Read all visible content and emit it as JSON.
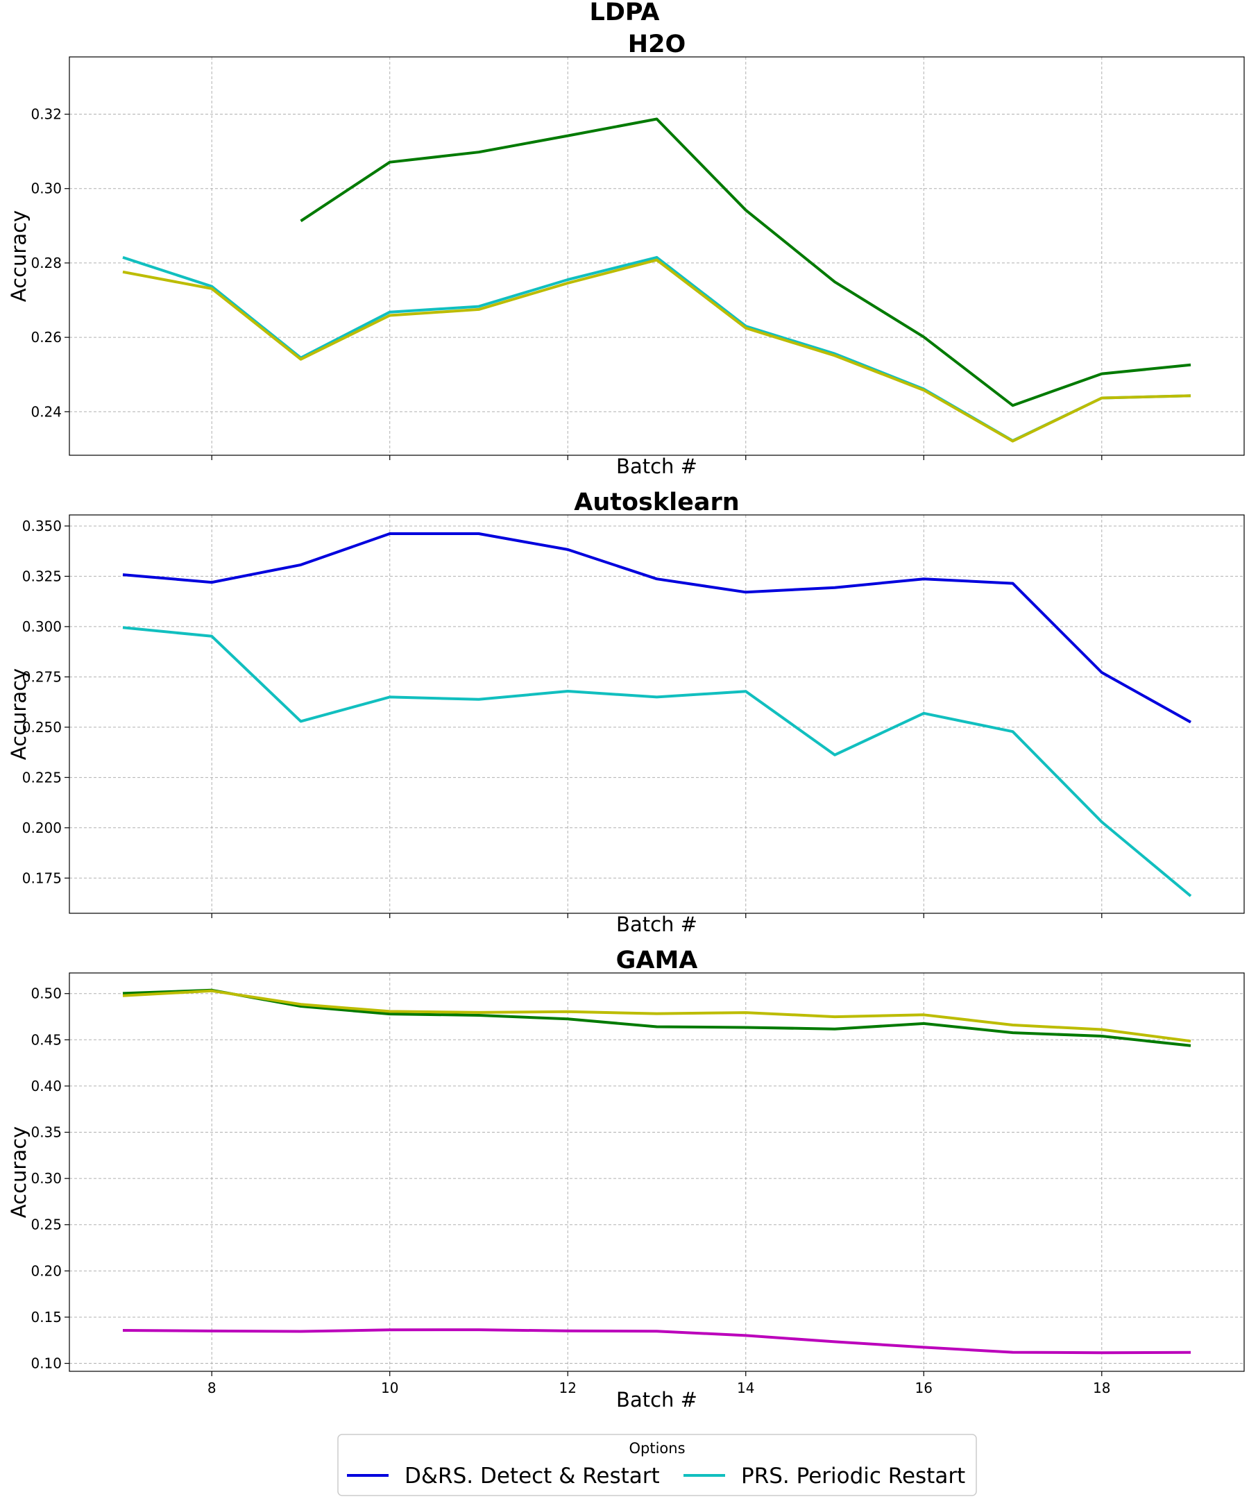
{
  "chart_data": {
    "type": "line",
    "title": "LDPA",
    "legend": {
      "title": "Options",
      "placement": "bottom-center",
      "entries": [
        {
          "label": "D&RS. Detect & Restart",
          "color": "#0000dd"
        },
        {
          "label": "PRS. Periodic Restart",
          "color": "#11bfbf"
        }
      ]
    },
    "x_ticks": [
      8,
      10,
      12,
      14,
      16,
      18
    ],
    "xlim": [
      6.4,
      19.6
    ],
    "grid": true,
    "panels": [
      {
        "title": "H2O",
        "xlabel": "Batch #",
        "ylabel": "Accuracy",
        "ylim": [
          0.2283,
          0.3354
        ],
        "y_ticks": [
          0.24,
          0.26,
          0.28,
          0.3,
          0.32
        ],
        "y_tick_labels": [
          "0.24",
          "0.26",
          "0.28",
          "0.30",
          "0.32"
        ],
        "show_x_tick_labels": false,
        "series": [
          {
            "color": "#007a00",
            "x": [
              9,
              10,
              11,
              12,
              13,
              14,
              15,
              16,
              17,
              18,
              19
            ],
            "values": [
              0.2913,
              0.3071,
              0.3098,
              0.3142,
              0.3187,
              0.2942,
              0.2749,
              0.2601,
              0.2417,
              0.2502,
              0.2526
            ]
          },
          {
            "color": "#11bfbf",
            "x": [
              7,
              8,
              9,
              10,
              11,
              12,
              13,
              14,
              15,
              16,
              17,
              18,
              19
            ],
            "values": [
              0.2815,
              0.2737,
              0.2545,
              0.2668,
              0.2683,
              0.2755,
              0.2815,
              0.263,
              0.2556,
              0.2461,
              0.2322,
              0.2437,
              0.2443
            ]
          },
          {
            "color": "#bcbc00",
            "x": [
              7,
              8,
              9,
              10,
              11,
              12,
              13,
              14,
              15,
              16,
              17,
              18,
              19
            ],
            "values": [
              0.2776,
              0.2731,
              0.2541,
              0.2659,
              0.2675,
              0.2746,
              0.2808,
              0.2625,
              0.2551,
              0.2458,
              0.2321,
              0.2437,
              0.2443
            ]
          }
        ]
      },
      {
        "title": "Autosklearn",
        "xlabel": "Batch #",
        "ylabel": "Accuracy",
        "ylim": [
          0.1575,
          0.3555
        ],
        "y_ticks": [
          0.175,
          0.2,
          0.225,
          0.25,
          0.275,
          0.3,
          0.325,
          0.35
        ],
        "y_tick_labels": [
          "0.175",
          "0.200",
          "0.225",
          "0.250",
          "0.275",
          "0.300",
          "0.325",
          "0.350"
        ],
        "show_x_tick_labels": false,
        "series": [
          {
            "color": "#0000dd",
            "x": [
              7,
              8,
              9,
              10,
              11,
              12,
              13,
              14,
              15,
              16,
              17,
              18,
              19
            ],
            "values": [
              0.3258,
              0.322,
              0.3307,
              0.3462,
              0.3462,
              0.3383,
              0.3237,
              0.3171,
              0.3194,
              0.3237,
              0.3215,
              0.2772,
              0.2525
            ]
          },
          {
            "color": "#11bfbf",
            "x": [
              7,
              8,
              9,
              10,
              11,
              12,
              13,
              14,
              15,
              16,
              17,
              18,
              19
            ],
            "values": [
              0.2995,
              0.2952,
              0.2529,
              0.265,
              0.2638,
              0.2679,
              0.265,
              0.2678,
              0.2362,
              0.2569,
              0.2478,
              0.2029,
              0.1661
            ]
          }
        ]
      },
      {
        "title": "GAMA",
        "xlabel": "Batch #",
        "ylabel": "Accuracy",
        "ylim": [
          0.0914,
          0.5223
        ],
        "y_ticks": [
          0.1,
          0.15,
          0.2,
          0.25,
          0.3,
          0.35,
          0.4,
          0.45,
          0.5
        ],
        "y_tick_labels": [
          "0.10",
          "0.15",
          "0.20",
          "0.25",
          "0.30",
          "0.35",
          "0.40",
          "0.45",
          "0.50"
        ],
        "show_x_tick_labels": true,
        "series": [
          {
            "color": "#007a00",
            "x": [
              7,
              8,
              9,
              10,
              11,
              12,
              13,
              14,
              15,
              16,
              17,
              18,
              19
            ],
            "values": [
              0.5002,
              0.5037,
              0.4863,
              0.4779,
              0.4765,
              0.4725,
              0.4641,
              0.4634,
              0.4617,
              0.4676,
              0.4577,
              0.454,
              0.4436
            ]
          },
          {
            "color": "#bcbc00",
            "x": [
              7,
              8,
              9,
              10,
              11,
              12,
              13,
              14,
              15,
              16,
              17,
              18,
              19
            ],
            "values": [
              0.4977,
              0.5029,
              0.4884,
              0.4807,
              0.4796,
              0.4804,
              0.4783,
              0.4794,
              0.4749,
              0.477,
              0.466,
              0.4611,
              0.4486
            ]
          },
          {
            "color": "#bb00bb",
            "x": [
              7,
              8,
              9,
              10,
              11,
              12,
              13,
              14,
              15,
              16,
              17,
              18,
              19
            ],
            "values": [
              0.1357,
              0.135,
              0.1346,
              0.1362,
              0.1364,
              0.1351,
              0.1348,
              0.1301,
              0.1234,
              0.1174,
              0.112,
              0.1115,
              0.1118
            ]
          }
        ]
      }
    ]
  }
}
